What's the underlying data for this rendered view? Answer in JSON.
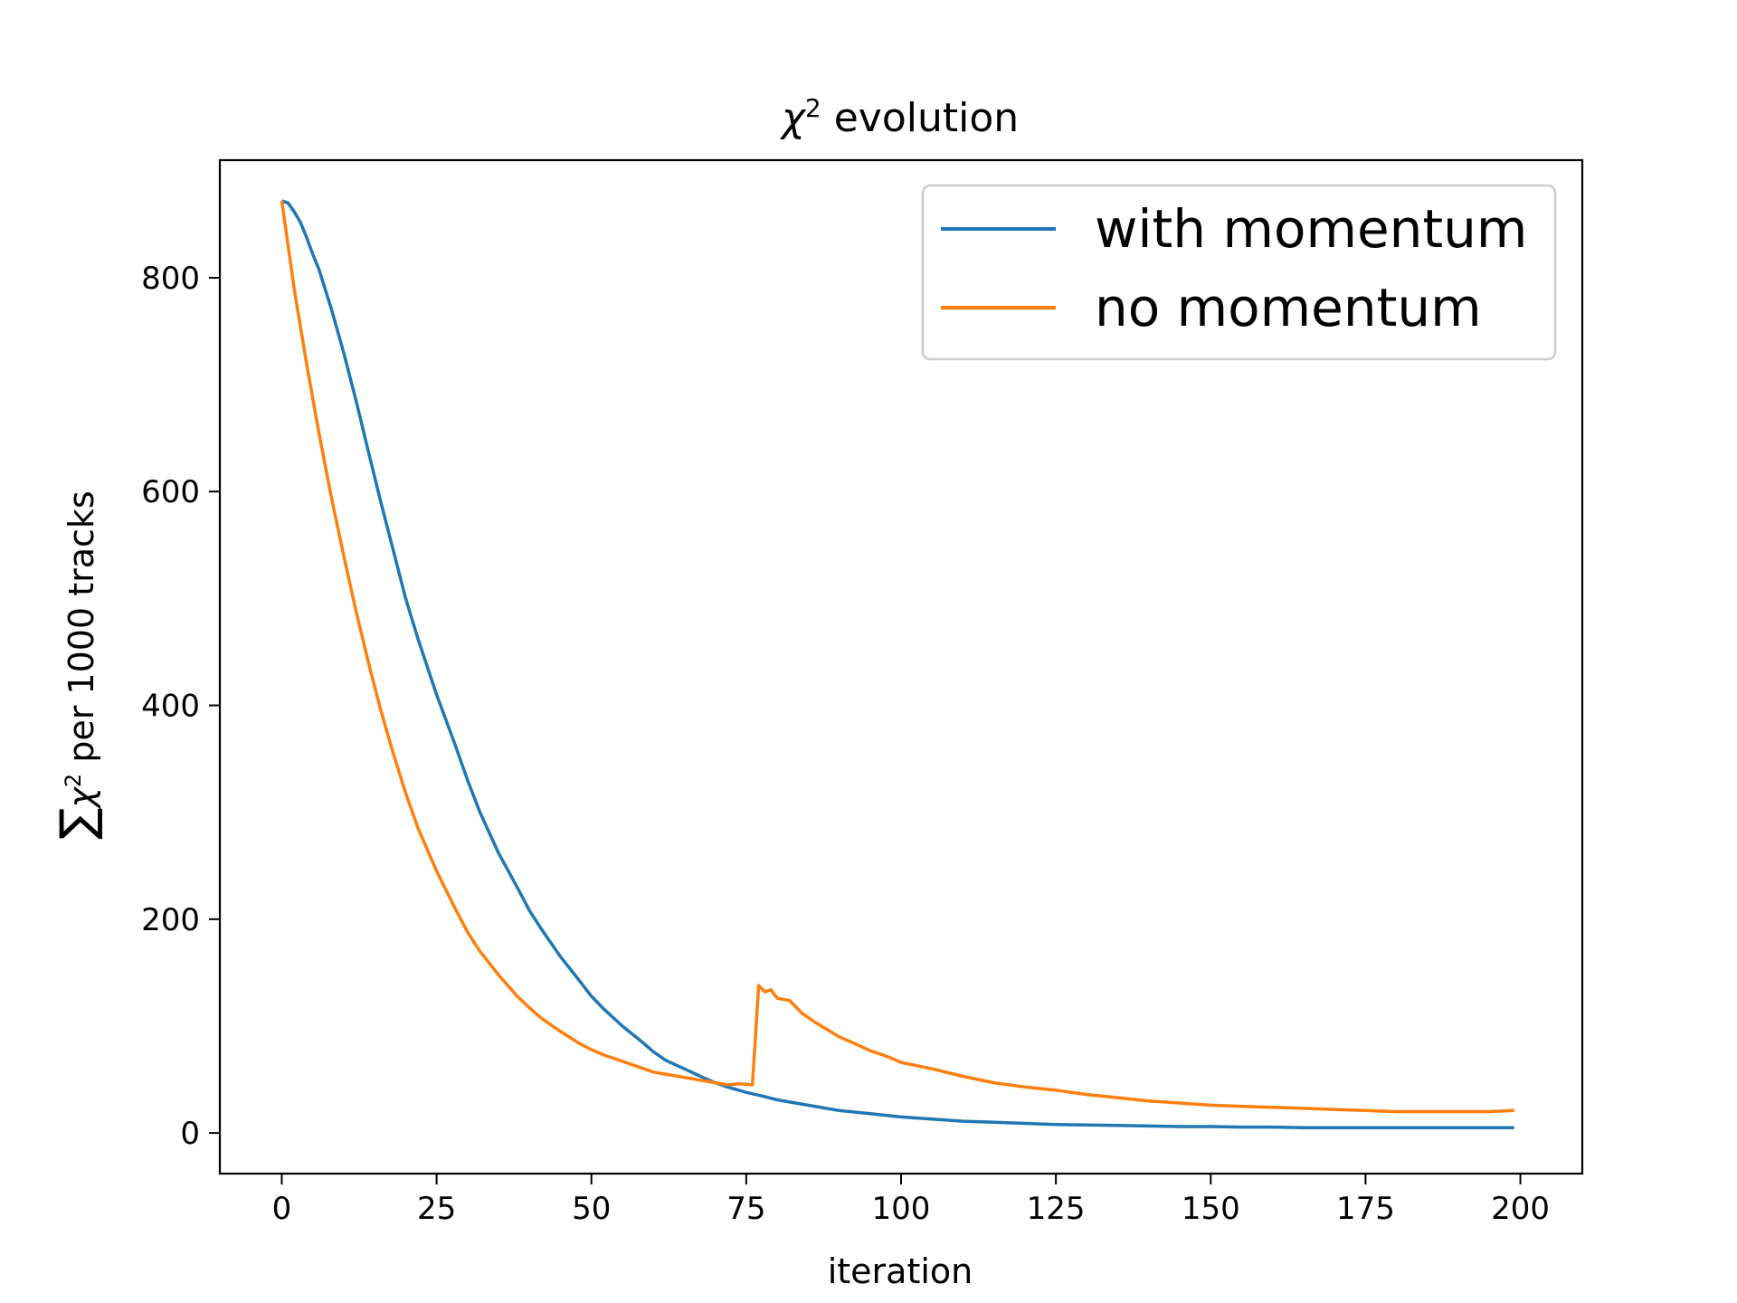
{
  "chart_data": {
    "type": "line",
    "title_prefix": "χ",
    "title_sup": "2",
    "title_suffix": " evolution",
    "xlabel": "iteration",
    "ylabel_sum": "∑",
    "ylabel_chi": "χ",
    "ylabel_sup": "2",
    "ylabel_rest": " per 1000 tracks",
    "xlim": [
      -10,
      210
    ],
    "ylim": [
      -38,
      910
    ],
    "xticks": [
      0,
      25,
      50,
      75,
      100,
      125,
      150,
      175,
      200
    ],
    "yticks": [
      0,
      200,
      400,
      600,
      800
    ],
    "legend_position": "upper right",
    "grid": false,
    "series": [
      {
        "name": "with momentum",
        "color": "#1f77b4",
        "x": [
          0,
          1,
          2,
          3,
          4,
          5,
          6,
          8,
          10,
          12,
          14,
          16,
          18,
          20,
          22,
          25,
          28,
          30,
          32,
          35,
          38,
          40,
          42,
          45,
          48,
          50,
          52,
          55,
          58,
          60,
          62,
          65,
          68,
          70,
          72,
          75,
          78,
          80,
          85,
          90,
          95,
          100,
          105,
          110,
          115,
          120,
          125,
          130,
          135,
          140,
          145,
          150,
          155,
          160,
          165,
          170,
          175,
          180,
          185,
          190,
          195,
          199
        ],
        "y": [
          872,
          870,
          862,
          852,
          838,
          822,
          808,
          771,
          730,
          685,
          637,
          590,
          545,
          500,
          462,
          410,
          363,
          330,
          300,
          262,
          230,
          208,
          190,
          165,
          143,
          128,
          116,
          100,
          86,
          76,
          68,
          60,
          52,
          47,
          43,
          38,
          34,
          31,
          26,
          21,
          18,
          15,
          13,
          11,
          10,
          9,
          8,
          7.5,
          7,
          6.5,
          6,
          6,
          5.5,
          5.5,
          5,
          5,
          5,
          5,
          5,
          5,
          5,
          5
        ]
      },
      {
        "name": "no momentum",
        "color": "#ff7f0e",
        "x": [
          0,
          2,
          4,
          6,
          8,
          10,
          12,
          14,
          16,
          18,
          20,
          22,
          25,
          28,
          30,
          32,
          35,
          38,
          40,
          42,
          45,
          48,
          50,
          52,
          55,
          58,
          60,
          62,
          65,
          68,
          70,
          72,
          74,
          76,
          77,
          78,
          79,
          80,
          82,
          84,
          86,
          88,
          90,
          92,
          95,
          98,
          100,
          105,
          110,
          115,
          120,
          125,
          130,
          135,
          140,
          145,
          150,
          155,
          160,
          165,
          170,
          175,
          180,
          185,
          190,
          195,
          199
        ],
        "y": [
          872,
          790,
          720,
          655,
          595,
          540,
          488,
          440,
          395,
          355,
          318,
          285,
          245,
          210,
          188,
          170,
          148,
          128,
          117,
          107,
          95,
          84,
          78,
          73,
          67,
          61,
          57,
          55,
          52,
          49,
          47,
          45,
          46,
          45,
          138,
          132,
          134,
          126,
          124,
          112,
          104,
          97,
          90,
          85,
          77,
          71,
          66,
          60,
          53,
          47,
          43,
          40,
          36,
          33,
          30,
          28,
          26,
          25,
          24,
          23,
          22,
          21,
          20,
          20,
          20,
          20,
          21
        ]
      }
    ]
  }
}
